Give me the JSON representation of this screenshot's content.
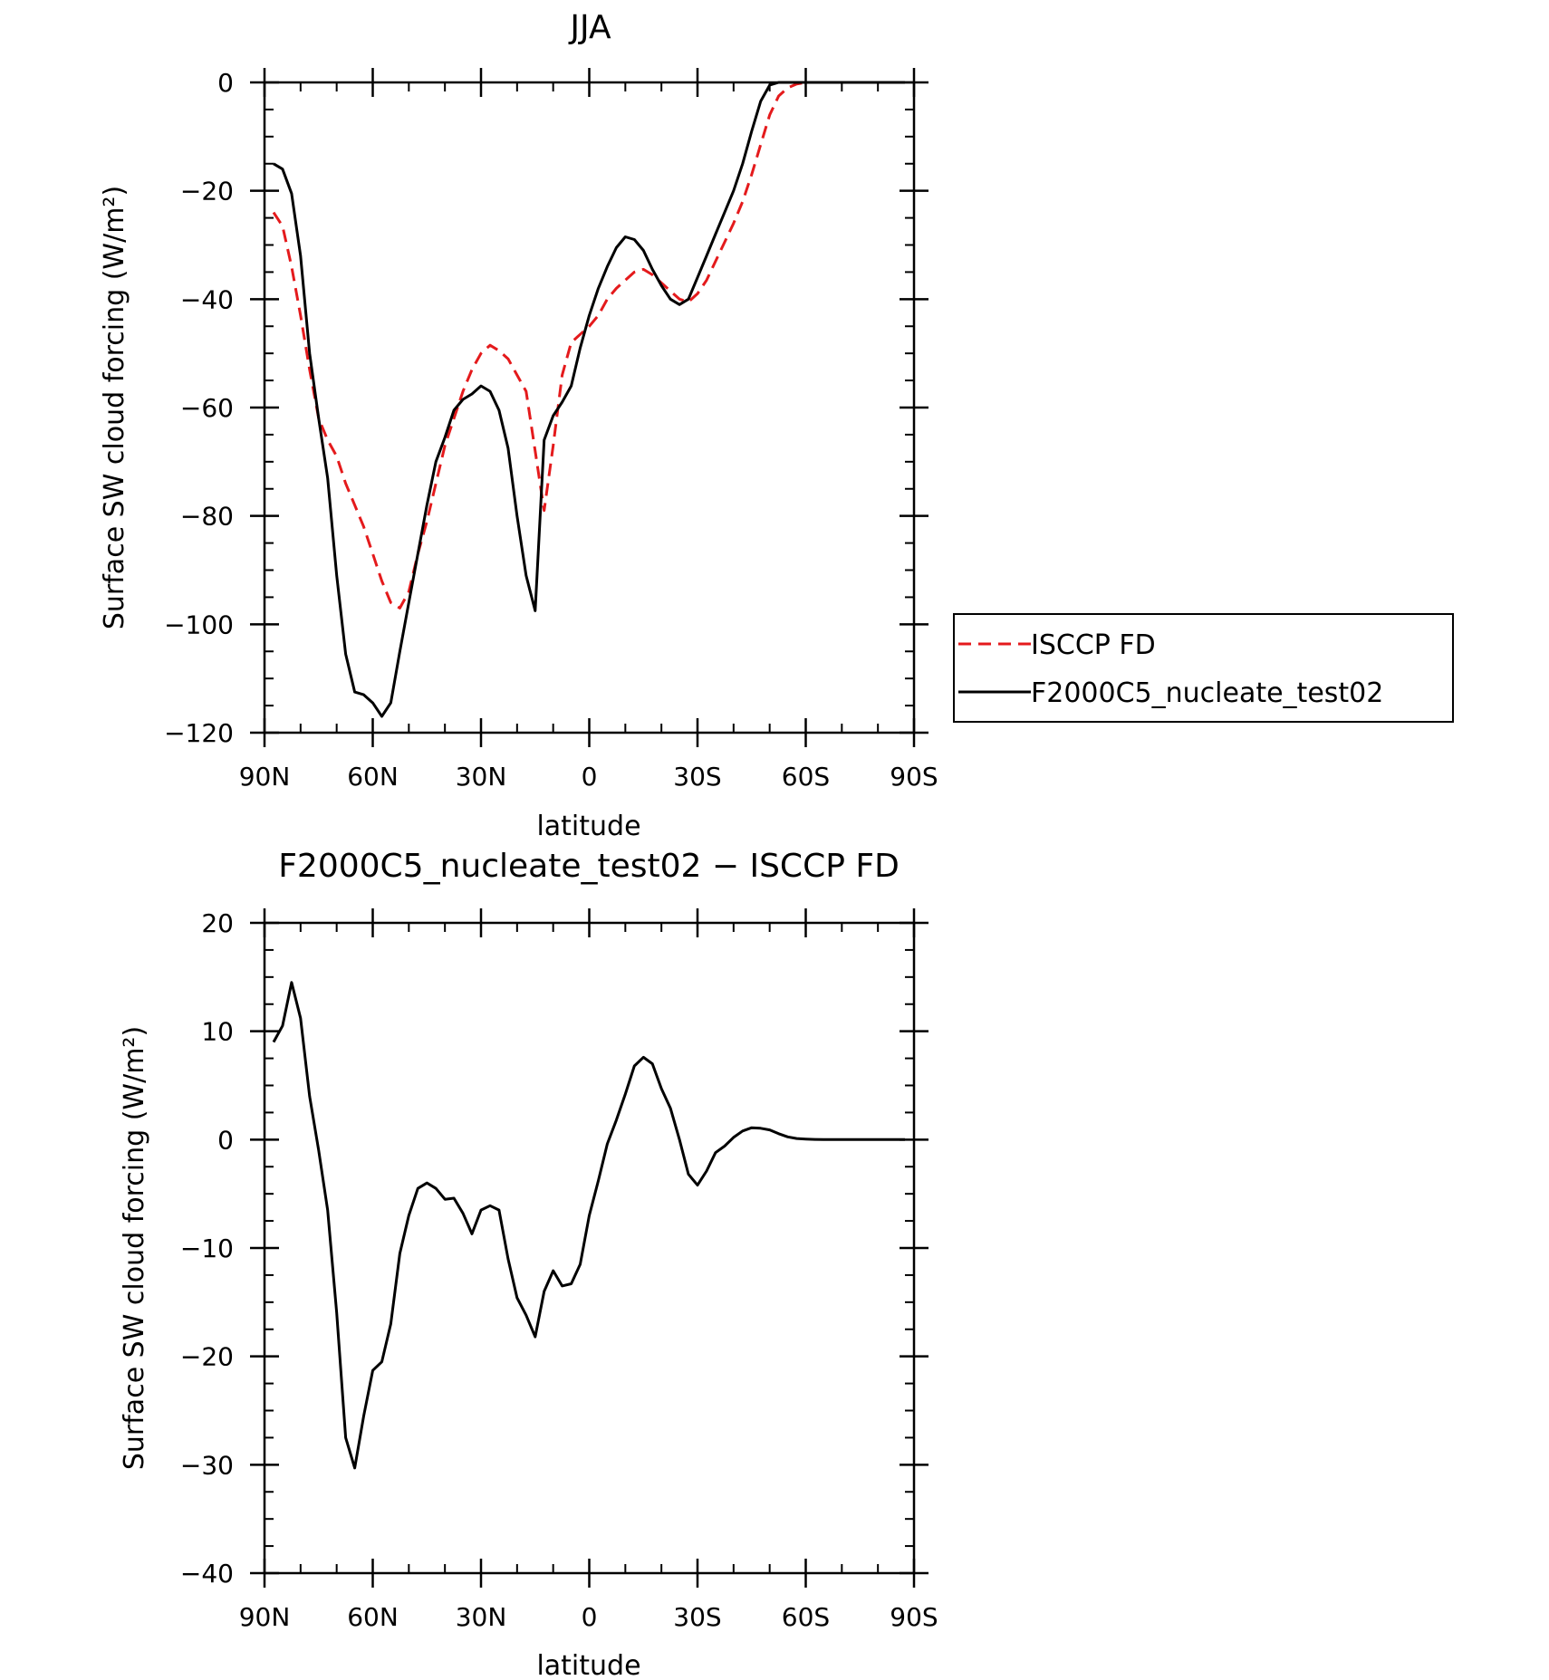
{
  "chart_data": [
    {
      "type": "line",
      "title": "JJA",
      "xlabel": "latitude",
      "ylabel": "Surface SW cloud forcing (W/m²)",
      "ylim": [
        -120,
        0
      ],
      "xlim": [
        90,
        -90
      ],
      "x_ticks": [
        {
          "value": 90,
          "label": "90N"
        },
        {
          "value": 60,
          "label": "60N"
        },
        {
          "value": 30,
          "label": "30N"
        },
        {
          "value": 0,
          "label": "0"
        },
        {
          "value": -30,
          "label": "30S"
        },
        {
          "value": -60,
          "label": "60S"
        },
        {
          "value": -90,
          "label": "90S"
        }
      ],
      "y_ticks": [
        {
          "value": 0,
          "label": "0"
        },
        {
          "value": -20,
          "label": "−20"
        },
        {
          "value": -40,
          "label": "−40"
        },
        {
          "value": -60,
          "label": "−60"
        },
        {
          "value": -80,
          "label": "−80"
        },
        {
          "value": -100,
          "label": "−100"
        },
        {
          "value": -120,
          "label": "−120"
        }
      ],
      "legend": {
        "placement": "right"
      },
      "series": [
        {
          "name": "ISCCP FD",
          "color": "#e41a1c",
          "dash": true,
          "x": [
            87.5,
            85,
            82.5,
            80,
            77.5,
            75,
            72.5,
            70,
            67.5,
            65,
            62.5,
            60,
            57.5,
            55,
            52.5,
            50,
            47.5,
            45,
            42.5,
            40,
            37.5,
            35,
            32.5,
            30,
            27.5,
            25,
            22.5,
            20,
            17.5,
            15,
            12.5,
            10,
            7.5,
            5,
            2.5,
            0,
            -2.5,
            -5,
            -7.5,
            -10,
            -12.5,
            -15,
            -17.5,
            -20,
            -22.5,
            -25,
            -27.5,
            -30,
            -32.5,
            -35,
            -37.5,
            -40,
            -42.5,
            -45,
            -47.5,
            -50,
            -52.5,
            -55,
            -57.5,
            -60,
            -62.5,
            -65,
            -67.5,
            -70,
            -72.5,
            -75,
            -77.5,
            -80,
            -82.5,
            -85,
            -87.5
          ],
          "y": [
            -24,
            -26.5,
            -34,
            -43,
            -53,
            -62,
            -66,
            -69,
            -74,
            -78,
            -82,
            -87,
            -92,
            -96,
            -97,
            -94,
            -87,
            -81,
            -74,
            -67,
            -62,
            -57,
            -53,
            -50,
            -48.5,
            -49.5,
            -51,
            -54,
            -57,
            -68,
            -79,
            -67,
            -54,
            -48,
            -46.5,
            -45,
            -43,
            -40,
            -38,
            -36.5,
            -35,
            -34.5,
            -35.5,
            -37,
            -38.5,
            -40,
            -40.5,
            -39,
            -36.5,
            -33,
            -29.5,
            -26,
            -22,
            -17,
            -11.5,
            -6,
            -2.5,
            -1,
            -0.3,
            0,
            0,
            0,
            0,
            0,
            0,
            0,
            0,
            0,
            0,
            0,
            0
          ]
        },
        {
          "name": "F2000C5_nucleate_test02",
          "color": "#000000",
          "dash": false,
          "x": [
            87.5,
            85,
            82.5,
            80,
            77.5,
            75,
            72.5,
            70,
            67.5,
            65,
            62.5,
            60,
            57.5,
            55,
            52.5,
            50,
            47.5,
            45,
            42.5,
            40,
            37.5,
            35,
            32.5,
            30,
            27.5,
            25,
            22.5,
            20,
            17.5,
            15,
            12.5,
            10,
            7.5,
            5,
            2.5,
            0,
            -2.5,
            -5,
            -7.5,
            -10,
            -12.5,
            -15,
            -17.5,
            -20,
            -22.5,
            -25,
            -27.5,
            -30,
            -32.5,
            -35,
            -37.5,
            -40,
            -42.5,
            -45,
            -47.5,
            -50,
            -52.5,
            -55,
            -57.5,
            -60,
            -62.5,
            -65,
            -67.5,
            -70,
            -72.5,
            -75,
            -77.5,
            -80,
            -82.5,
            -85,
            -87.5
          ],
          "y": [
            -15,
            -16,
            -20.5,
            -32,
            -50,
            -62,
            -73,
            -91,
            -105.5,
            -112.5,
            -113,
            -114.5,
            -117,
            -114.5,
            -105,
            -96,
            -87,
            -78,
            -70,
            -65.5,
            -60.5,
            -58.5,
            -57.5,
            -56,
            -57,
            -60.5,
            -67.5,
            -80,
            -91,
            -97.5,
            -66,
            -61.5,
            -59,
            -56,
            -49,
            -43,
            -38,
            -34,
            -30.5,
            -28.5,
            -29,
            -31,
            -34.5,
            -37.5,
            -40,
            -41,
            -40,
            -36,
            -32,
            -28,
            -24,
            -20,
            -15,
            -9,
            -3.5,
            -0.5,
            0,
            0,
            0,
            0,
            0,
            0,
            0,
            0,
            0,
            0,
            0,
            0,
            0,
            0,
            0
          ]
        }
      ]
    },
    {
      "type": "line",
      "title": "F2000C5_nucleate_test02 − ISCCP FD",
      "xlabel": "latitude",
      "ylabel": "Surface SW cloud forcing (W/m²)",
      "ylim": [
        -40,
        20
      ],
      "xlim": [
        90,
        -90
      ],
      "x_ticks": [
        {
          "value": 90,
          "label": "90N"
        },
        {
          "value": 60,
          "label": "60N"
        },
        {
          "value": 30,
          "label": "30N"
        },
        {
          "value": 0,
          "label": "0"
        },
        {
          "value": -30,
          "label": "30S"
        },
        {
          "value": -60,
          "label": "60S"
        },
        {
          "value": -90,
          "label": "90S"
        }
      ],
      "y_ticks": [
        {
          "value": 20,
          "label": "20"
        },
        {
          "value": 10,
          "label": "10"
        },
        {
          "value": 0,
          "label": "0"
        },
        {
          "value": -10,
          "label": "−10"
        },
        {
          "value": -20,
          "label": "−20"
        },
        {
          "value": -30,
          "label": "−30"
        },
        {
          "value": -40,
          "label": "−40"
        }
      ],
      "series": [
        {
          "color": "#000000",
          "dash": false,
          "x": [
            87.5,
            85,
            82.5,
            80,
            77.5,
            75,
            72.5,
            70,
            67.5,
            65,
            62.5,
            60,
            57.5,
            55,
            52.5,
            50,
            47.5,
            45,
            42.5,
            40,
            37.5,
            35,
            32.5,
            30,
            27.5,
            25,
            22.5,
            20,
            17.5,
            15,
            12.5,
            10,
            7.5,
            5,
            2.5,
            0,
            -2.5,
            -5,
            -7.5,
            -10,
            -12.5,
            -15,
            -17.5,
            -20,
            -22.5,
            -25,
            -27.5,
            -30,
            -32.5,
            -35,
            -37.5,
            -40,
            -42.5,
            -45,
            -47.5,
            -50,
            -52.5,
            -55,
            -57.5,
            -60,
            -62.5,
            -65,
            -67.5,
            -70,
            -72.5,
            -75,
            -77.5,
            -80,
            -82.5,
            -85,
            -87.5
          ],
          "y": [
            9,
            10.5,
            14.5,
            11.2,
            4,
            -1,
            -6.5,
            -16,
            -27.5,
            -30.3,
            -25.5,
            -21.3,
            -20.5,
            -17,
            -10.5,
            -7,
            -4.5,
            -4,
            -4.5,
            -5.5,
            -5.4,
            -6.8,
            -8.7,
            -6.5,
            -6.1,
            -6.5,
            -11,
            -14.6,
            -16.2,
            -18.2,
            -14,
            -12.1,
            -13.5,
            -13.3,
            -11.5,
            -7,
            -3.8,
            -0.4,
            1.8,
            4.2,
            6.8,
            7.6,
            7,
            4.7,
            2.9,
            0,
            -3.2,
            -4.2,
            -2.9,
            -1.2,
            -0.6,
            0.2,
            0.8,
            1.1,
            1.05,
            0.9,
            0.55,
            0.25,
            0.1,
            0.05,
            0.02,
            0,
            0,
            0,
            0,
            0,
            0,
            0,
            0,
            0,
            0
          ]
        }
      ]
    }
  ]
}
